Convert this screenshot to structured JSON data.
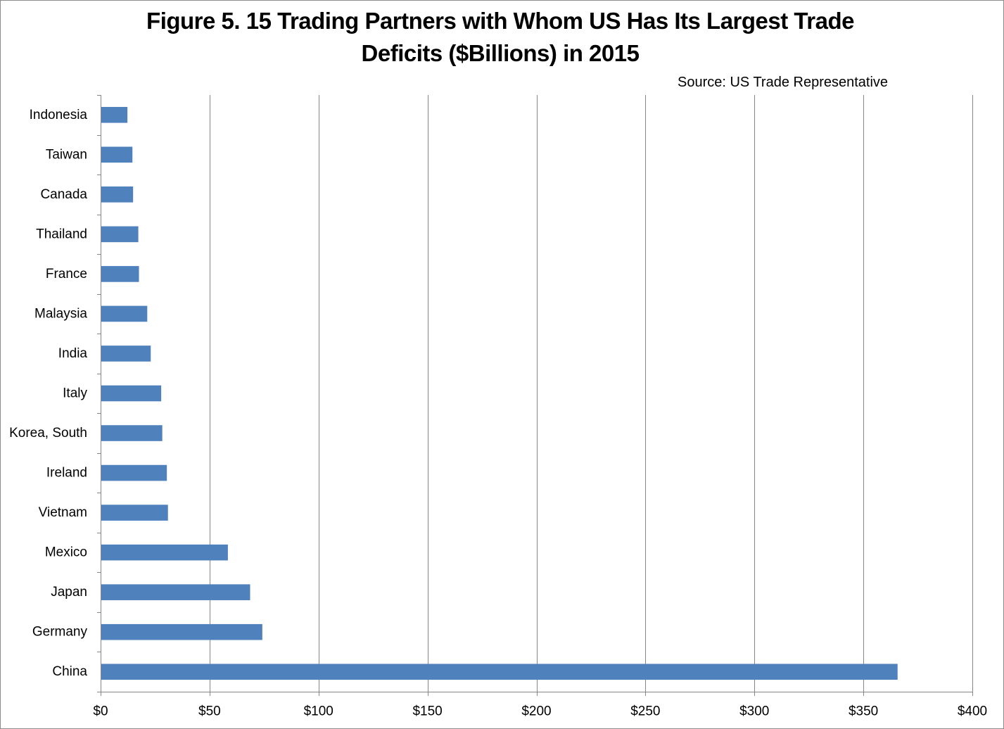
{
  "chart_data": {
    "type": "bar",
    "orientation": "horizontal",
    "title": "Figure 5. 15 Trading Partners with Whom US Has Its Largest Trade Deficits ($Billions) in 2015",
    "title_lines": [
      "Figure 5. 15 Trading Partners with Whom US Has Its Largest Trade",
      "Deficits ($Billions) in 2015"
    ],
    "source": "Source: US Trade Representative",
    "categories": [
      "Indonesia",
      "Taiwan",
      "Canada",
      "Thailand",
      "France",
      "Malaysia",
      "India",
      "Italy",
      "Korea, South",
      "Ireland",
      "Vietnam",
      "Mexico",
      "Japan",
      "Germany",
      "China"
    ],
    "values": [
      12.3,
      14.6,
      14.9,
      17.3,
      17.6,
      21.4,
      23.0,
      27.8,
      28.3,
      30.4,
      30.9,
      58.4,
      68.6,
      74.2,
      365.7
    ],
    "xlim": [
      0,
      400
    ],
    "xticks": [
      0,
      50,
      100,
      150,
      200,
      250,
      300,
      350,
      400
    ],
    "xtick_labels": [
      "$0",
      "$50",
      "$100",
      "$150",
      "$200",
      "$250",
      "$300",
      "$350",
      "$400"
    ],
    "xlabel": "",
    "ylabel": "",
    "grid": "vertical major gridlines",
    "legend": "none",
    "bar_color": "#4f81bd",
    "gridline_color": "#868686"
  }
}
